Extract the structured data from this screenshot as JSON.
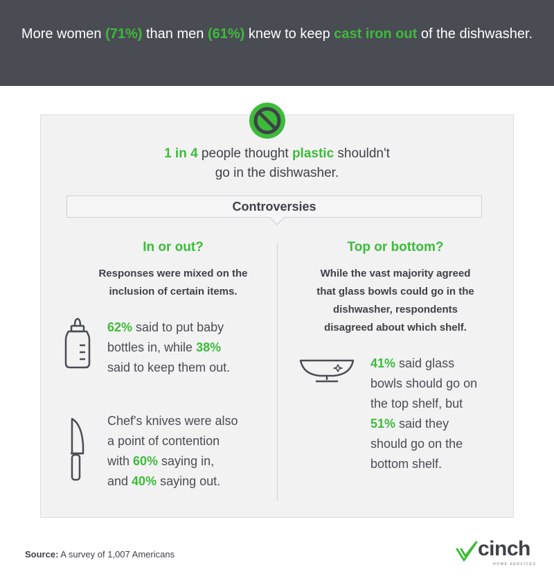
{
  "header": {
    "t1": "More women ",
    "women_pct": "(71%)",
    "t2": "  than men ",
    "men_pct": "(61%)",
    "t3": " knew to keep ",
    "hl": "cast iron out",
    "t4": " of the dishwasher."
  },
  "intro": {
    "hl1": "1 in 4",
    "t1": " people thought ",
    "hl2": "plastic",
    "t2": " shouldn't",
    "line2": "go in the dishwasher."
  },
  "controversies": {
    "title": "Controversies"
  },
  "left": {
    "heading": "In or out?",
    "sub_line1": "Responses were mixed on the",
    "sub_line2": "inclusion of certain items.",
    "bottles": {
      "pct1": "62%",
      "t1": " said to put baby",
      "t2": "bottles in, while ",
      "pct2": "38%",
      "t3": "said to keep them out."
    },
    "knives": {
      "l1": "Chef's knives were also",
      "l2": "a point of contention",
      "t3a": "with ",
      "pct1": "60%",
      "t3b": " saying in,",
      "t4a": "and ",
      "pct2": "40%",
      "t4b": " saying out."
    }
  },
  "right": {
    "heading": "Top or bottom?",
    "sub_line1": "While the vast majority agreed",
    "sub_line2": "that glass bowls could go in the",
    "sub_line3": "dishwasher, respondents",
    "sub_line4": "disagreed about which shelf.",
    "bowls": {
      "pct1": "41%",
      "t1": " said glass",
      "l2": "bowls should go on",
      "l3": "the top shelf, but",
      "pct2": "51%",
      "t4": " said they",
      "l5": "should go on the",
      "l6": "bottom shelf."
    }
  },
  "footer": {
    "source_label": "Source:",
    "source_text": " A survey of 1,007 Americans",
    "logo_word": "cinch",
    "logo_tag": "HOME SERVICES"
  },
  "colors": {
    "accent": "#3dbb3a",
    "header_bg": "#4a4c54",
    "panel_bg": "#f2f2f3",
    "text": "#3f4148"
  }
}
